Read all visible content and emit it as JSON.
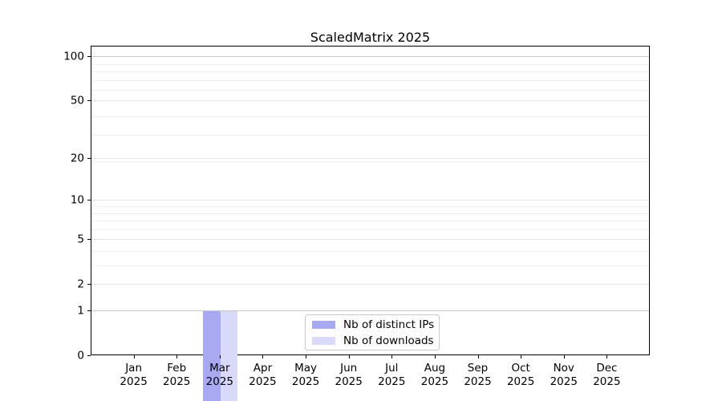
{
  "chart_data": {
    "type": "bar",
    "title": "ScaledMatrix 2025",
    "categories": [
      "Jan 2025",
      "Feb 2025",
      "Mar 2025",
      "Apr 2025",
      "May 2025",
      "Jun 2025",
      "Jul 2025",
      "Aug 2025",
      "Sep 2025",
      "Oct 2025",
      "Nov 2025",
      "Dec 2025"
    ],
    "series": [
      {
        "name": "Nb of distinct IPs",
        "color": "#a9a9f2",
        "values": [
          0,
          0,
          1,
          0,
          0,
          0,
          0,
          0,
          0,
          0,
          0,
          0
        ]
      },
      {
        "name": "Nb of downloads",
        "color": "#d9d9f9",
        "values": [
          0,
          0,
          1,
          0,
          0,
          0,
          0,
          0,
          0,
          0,
          0,
          0
        ]
      }
    ],
    "yscale": "log1p",
    "ylim": [
      0,
      118
    ],
    "ytick_values": [
      0,
      1,
      2,
      5,
      10,
      20,
      50,
      100
    ],
    "ytick_labels": [
      "0",
      "1",
      "2",
      "5",
      "10",
      "20",
      "50",
      "100"
    ],
    "grid": "horizontal",
    "gridline_values": {
      "strong": [
        1,
        100
      ],
      "medium": [
        2,
        5,
        10,
        20,
        50
      ],
      "faint": [
        3,
        4,
        6,
        7,
        8,
        9,
        19,
        29,
        39,
        59,
        69,
        79,
        89
      ]
    },
    "legend_position": "lower center"
  },
  "colors": {
    "background": "#ffffff",
    "bar_distinct_ips": "#a9a9f2",
    "bar_downloads": "#d9d9f9",
    "grid_strong": "#c8c8c8",
    "grid_medium": "#e3e3e3",
    "grid_faint": "#efefef",
    "spine": "#000000",
    "text": "#000000",
    "legend_border": "#c9c9c9"
  }
}
